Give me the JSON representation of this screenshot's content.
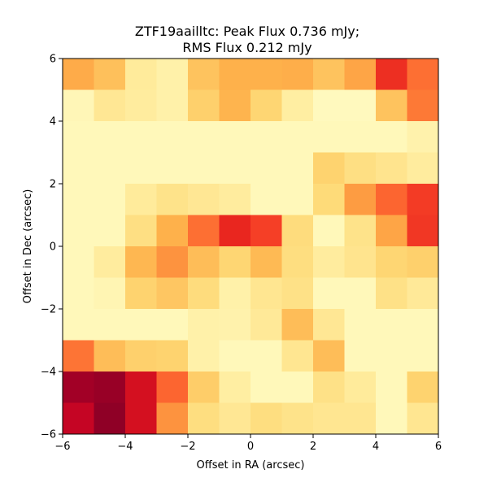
{
  "chart_data": {
    "type": "heatmap",
    "title_line1": "ZTF19aailltc: Peak Flux 0.736 mJy;",
    "title_line2": "RMS Flux 0.212 mJy",
    "xlabel": "Offset in RA (arcsec)",
    "ylabel": "Offset in Dec (arcsec)",
    "xlim": [
      -6,
      6
    ],
    "ylim": [
      -6,
      6
    ],
    "x_ticks": [
      -6,
      -4,
      -2,
      0,
      2,
      4,
      6
    ],
    "y_ticks": [
      -6,
      -4,
      -2,
      0,
      2,
      4,
      6
    ],
    "x_tick_labels": [
      "−6",
      "−4",
      "−2",
      "0",
      "2",
      "4",
      "6"
    ],
    "y_tick_labels": [
      "−6",
      "−4",
      "−2",
      "0",
      "2",
      "4",
      "6"
    ],
    "colormap": "YlOrRd",
    "grid": false,
    "legend": "none",
    "pixel_size": 1,
    "rows_top_to_bottom": [
      [
        0.4,
        0.33,
        0.14,
        0.1,
        0.32,
        0.38,
        0.38,
        0.39,
        0.32,
        0.42,
        0.7,
        0.56
      ],
      [
        0.06,
        0.16,
        0.13,
        0.1,
        0.28,
        0.37,
        0.26,
        0.12,
        0.04,
        0.04,
        0.32,
        0.54
      ],
      [
        0.05,
        0.05,
        0.05,
        0.05,
        0.05,
        0.05,
        0.05,
        0.05,
        0.05,
        0.05,
        0.05,
        0.09
      ],
      [
        0.05,
        0.05,
        0.05,
        0.05,
        0.05,
        0.05,
        0.05,
        0.05,
        0.27,
        0.21,
        0.18,
        0.13
      ],
      [
        0.05,
        0.05,
        0.14,
        0.19,
        0.16,
        0.13,
        0.05,
        0.05,
        0.24,
        0.45,
        0.58,
        0.67
      ],
      [
        0.05,
        0.05,
        0.21,
        0.38,
        0.56,
        0.72,
        0.66,
        0.23,
        0.05,
        0.19,
        0.42,
        0.68
      ],
      [
        0.05,
        0.13,
        0.36,
        0.48,
        0.34,
        0.26,
        0.35,
        0.22,
        0.13,
        0.18,
        0.26,
        0.28
      ],
      [
        0.05,
        0.07,
        0.27,
        0.31,
        0.23,
        0.1,
        0.17,
        0.2,
        0.05,
        0.05,
        0.2,
        0.15
      ],
      [
        0.05,
        0.05,
        0.05,
        0.05,
        0.1,
        0.09,
        0.15,
        0.34,
        0.16,
        0.05,
        0.05,
        0.05
      ],
      [
        0.55,
        0.34,
        0.28,
        0.27,
        0.1,
        0.05,
        0.05,
        0.17,
        0.34,
        0.05,
        0.05,
        0.05
      ],
      [
        0.93,
        0.95,
        0.8,
        0.58,
        0.29,
        0.12,
        0.05,
        0.05,
        0.2,
        0.14,
        0.05,
        0.27
      ],
      [
        0.85,
        0.97,
        0.8,
        0.48,
        0.22,
        0.16,
        0.22,
        0.19,
        0.17,
        0.17,
        0.05,
        0.17
      ]
    ]
  }
}
